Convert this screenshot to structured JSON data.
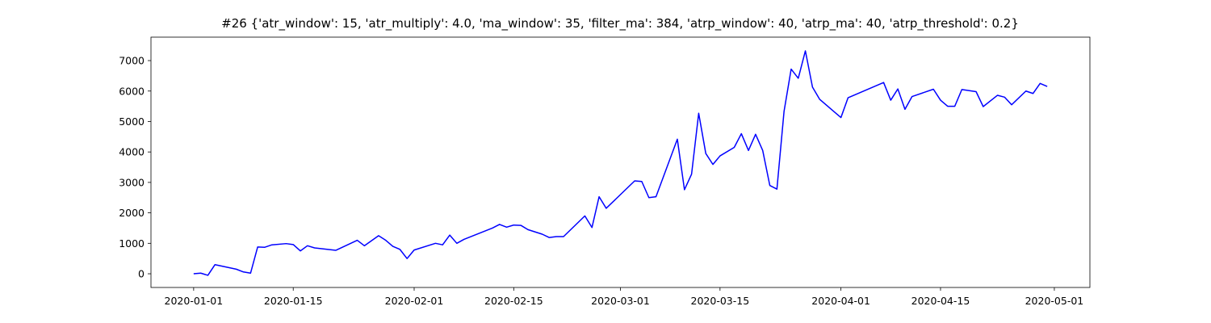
{
  "chart_data": {
    "type": "line",
    "title": "#26 {'atr_window': 15, 'atr_multiply': 4.0, 'ma_window': 35, 'filter_ma': 384, 'atrp_window': 40, 'atrp_ma': 40, 'atrp_threshold': 0.2}",
    "color": "#0000ff",
    "x": [
      "2020-01-01",
      "2020-01-02",
      "2020-01-03",
      "2020-01-04",
      "2020-01-07",
      "2020-01-08",
      "2020-01-09",
      "2020-01-10",
      "2020-01-11",
      "2020-01-12",
      "2020-01-14",
      "2020-01-15",
      "2020-01-16",
      "2020-01-17",
      "2020-01-18",
      "2020-01-21",
      "2020-01-24",
      "2020-01-25",
      "2020-01-27",
      "2020-01-28",
      "2020-01-29",
      "2020-01-30",
      "2020-01-31",
      "2020-02-01",
      "2020-02-04",
      "2020-02-05",
      "2020-02-06",
      "2020-02-07",
      "2020-02-08",
      "2020-02-12",
      "2020-02-13",
      "2020-02-14",
      "2020-02-15",
      "2020-02-16",
      "2020-02-17",
      "2020-02-19",
      "2020-02-20",
      "2020-02-21",
      "2020-02-22",
      "2020-02-25",
      "2020-02-26",
      "2020-02-27",
      "2020-02-28",
      "2020-03-03",
      "2020-03-04",
      "2020-03-05",
      "2020-03-06",
      "2020-03-09",
      "2020-03-10",
      "2020-03-11",
      "2020-03-12",
      "2020-03-13",
      "2020-03-14",
      "2020-03-15",
      "2020-03-17",
      "2020-03-18",
      "2020-03-19",
      "2020-03-20",
      "2020-03-21",
      "2020-03-22",
      "2020-03-23",
      "2020-03-24",
      "2020-03-25",
      "2020-03-26",
      "2020-03-27",
      "2020-03-28",
      "2020-03-29",
      "2020-03-31",
      "2020-04-01",
      "2020-04-02",
      "2020-04-07",
      "2020-04-08",
      "2020-04-09",
      "2020-04-10",
      "2020-04-11",
      "2020-04-14",
      "2020-04-15",
      "2020-04-16",
      "2020-04-17",
      "2020-04-18",
      "2020-04-20",
      "2020-04-21",
      "2020-04-23",
      "2020-04-24",
      "2020-04-25",
      "2020-04-27",
      "2020-04-28",
      "2020-04-29",
      "2020-04-30"
    ],
    "values": [
      0,
      20,
      -50,
      300,
      150,
      60,
      20,
      880,
      870,
      950,
      990,
      960,
      750,
      920,
      850,
      770,
      1100,
      920,
      1250,
      1100,
      900,
      800,
      500,
      780,
      1000,
      950,
      1270,
      1000,
      1130,
      1500,
      1620,
      1530,
      1600,
      1590,
      1450,
      1300,
      1190,
      1220,
      1220,
      1900,
      1520,
      2530,
      2150,
      3050,
      3030,
      2500,
      2530,
      4420,
      2760,
      3270,
      5270,
      3950,
      3590,
      3870,
      4150,
      4600,
      4050,
      4580,
      4050,
      2900,
      2780,
      5330,
      6720,
      6420,
      7320,
      6130,
      5730,
      5330,
      5130,
      5780,
      6280,
      5700,
      6070,
      5400,
      5820,
      6060,
      5700,
      5500,
      5500,
      6050,
      5980,
      5490,
      5860,
      5800,
      5550,
      6000,
      5920,
      6250,
      6150
    ],
    "xlim": [
      "2019-12-26",
      "2020-05-06"
    ],
    "ylim": [
      -450,
      7770
    ],
    "xticks": [
      "2020-01-01",
      "2020-01-15",
      "2020-02-01",
      "2020-02-15",
      "2020-03-01",
      "2020-03-15",
      "2020-04-01",
      "2020-04-15",
      "2020-05-01"
    ],
    "yticks": [
      0,
      1000,
      2000,
      3000,
      4000,
      5000,
      6000,
      7000
    ]
  }
}
